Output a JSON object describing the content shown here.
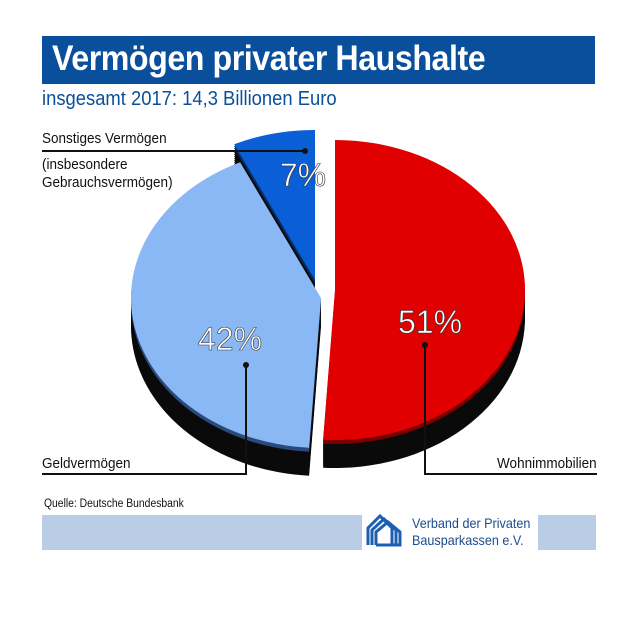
{
  "chart_data": {
    "type": "pie",
    "title": "Vermögen privater Haushalte",
    "subtitle": "insgesamt 2017: 14,3 Billionen Euro",
    "slices": [
      {
        "label": "Wohnimmobilien",
        "value": 51,
        "value_label": "51%",
        "color": "#e00000"
      },
      {
        "label": "Geldvermögen",
        "value": 42,
        "value_label": "42%",
        "color": "#8ab8f5"
      },
      {
        "label": "Sonstiges Vermögen",
        "sublabel": "(insbesondere Gebrauchsvermögen)",
        "value": 7,
        "value_label": "7%",
        "color": "#0a5fd6"
      }
    ],
    "style": "3d-exploded"
  },
  "source": "Quelle: Deutsche Bundesbank",
  "publisher": {
    "line1": "Verband der Privaten",
    "line2": "Bausparkassen e.V."
  },
  "colors": {
    "title_bar": "#0a4f9c",
    "band": "#b9cde6"
  }
}
